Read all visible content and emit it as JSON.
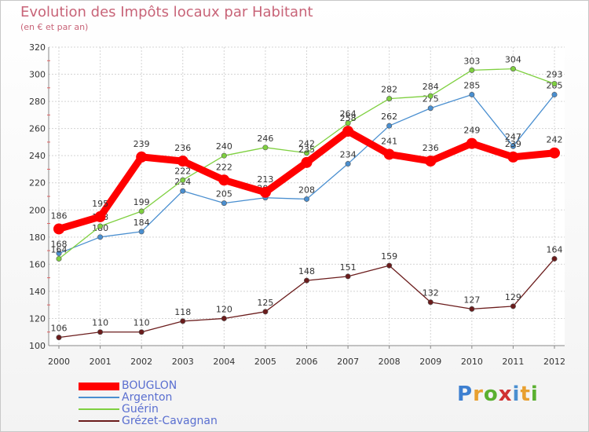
{
  "title": "Evolution des Impôts locaux par Habitant",
  "subtitle": "(en € et par an)",
  "chart_data": {
    "type": "line",
    "title": "Evolution des Impôts locaux par Habitant",
    "subtitle": "(en € et par an)",
    "x": [
      "2000",
      "2001",
      "2002",
      "2003",
      "2004",
      "2005",
      "2006",
      "2007",
      "2008",
      "2009",
      "2010",
      "2011",
      "2012"
    ],
    "ylim": [
      100,
      320
    ],
    "yticks": [
      100,
      120,
      140,
      160,
      180,
      200,
      220,
      240,
      260,
      280,
      300,
      320
    ],
    "grid": true,
    "legend_position": "bottom-left",
    "series": [
      {
        "name": "Grézet-Cavagnan",
        "color": "#6b1c1c",
        "values": [
          106,
          110,
          110,
          118,
          120,
          125,
          148,
          151,
          159,
          132,
          127,
          129,
          164
        ]
      },
      {
        "name": "Argenton",
        "color": "#4a8fd0",
        "values": [
          168,
          180,
          184,
          214,
          205,
          209,
          208,
          234,
          262,
          275,
          285,
          247,
          285
        ]
      },
      {
        "name": "Guérin",
        "color": "#7fd040",
        "values": [
          164,
          188,
          199,
          222,
          240,
          246,
          242,
          264,
          282,
          284,
          303,
          304,
          293
        ]
      },
      {
        "name": "BOUGLON",
        "color": "#ff0000",
        "values": [
          186,
          195,
          239,
          236,
          222,
          213,
          235,
          258,
          241,
          236,
          249,
          239,
          242
        ]
      }
    ]
  },
  "legend": [
    {
      "label": "BOUGLON",
      "color": "#ff0000"
    },
    {
      "label": "Argenton",
      "color": "#4a8fd0"
    },
    {
      "label": "Guérin",
      "color": "#7fd040"
    },
    {
      "label": "Grézet-Cavagnan",
      "color": "#6b1c1c"
    }
  ],
  "logo": {
    "text": "Proxiti",
    "letter_colors": [
      "#3d7fd0",
      "#e8a030",
      "#5ab030",
      "#d03030",
      "#4a8fd0",
      "#e8a030",
      "#5ab030"
    ]
  }
}
